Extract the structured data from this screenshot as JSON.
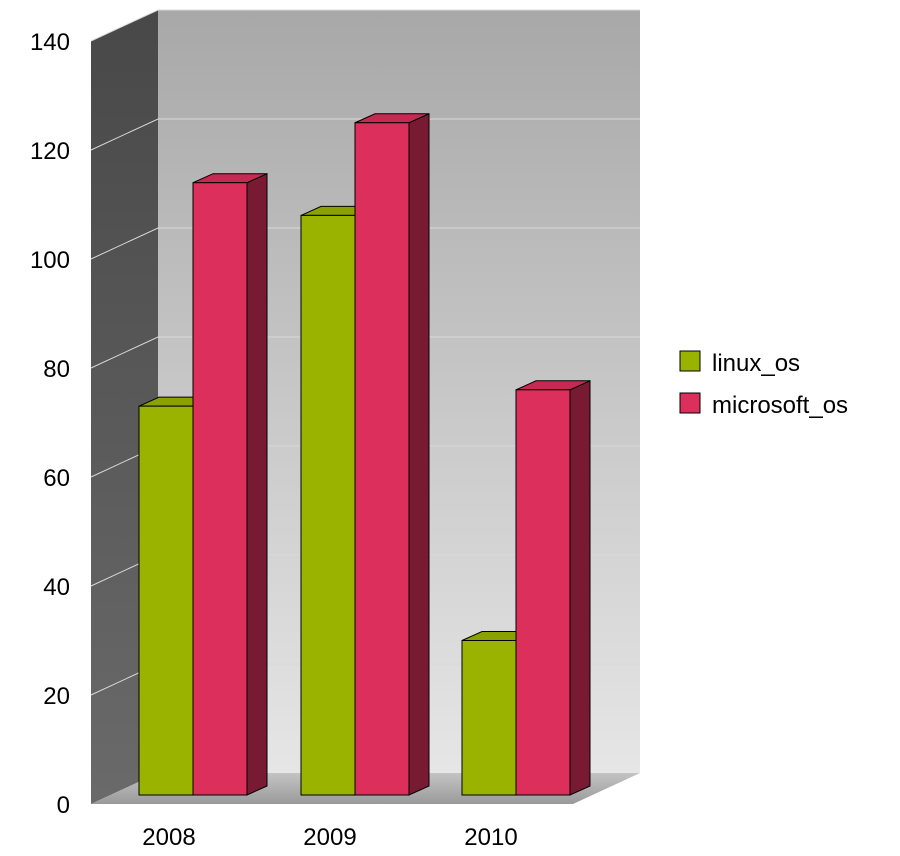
{
  "chart_data": {
    "type": "bar",
    "style": "3d-clustered-column",
    "categories": [
      "2008",
      "2009",
      "2010"
    ],
    "series": [
      {
        "name": "linux_os",
        "values": [
          73,
          108,
          30
        ],
        "color": "#99b300"
      },
      {
        "name": "microsoft_os",
        "values": [
          114,
          125,
          76
        ],
        "color": "#dc2f5c"
      }
    ],
    "ylim": [
      0,
      140
    ],
    "yticks": [
      "0",
      "20",
      "40",
      "60",
      "80",
      "100",
      "120",
      "140"
    ],
    "grid": true,
    "legend": "right",
    "title": "",
    "xlabel": "",
    "ylabel": ""
  }
}
